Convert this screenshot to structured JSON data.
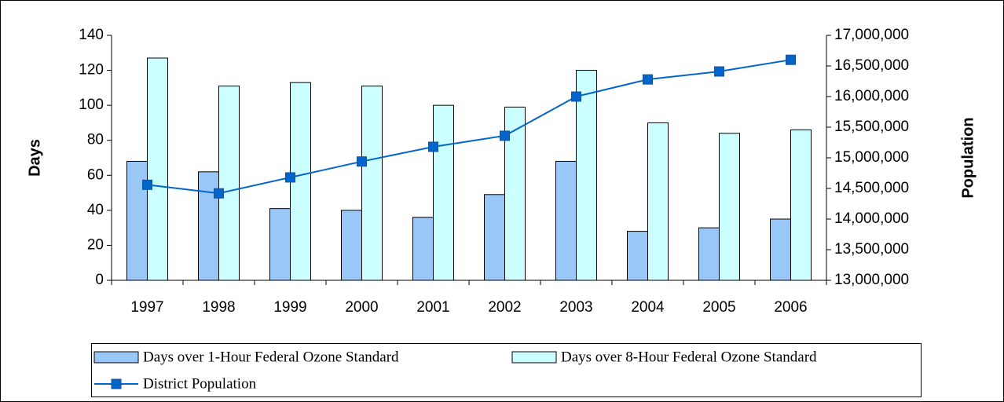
{
  "chart_data": {
    "type": "bar",
    "categories": [
      "1997",
      "1998",
      "1999",
      "2000",
      "2001",
      "2002",
      "2003",
      "2004",
      "2005",
      "2006"
    ],
    "series": [
      {
        "name": "Days over 1-Hour Federal Ozone Standard",
        "color": "#99c8f8",
        "type": "bar",
        "values": [
          68,
          62,
          41,
          40,
          36,
          49,
          68,
          28,
          30,
          35
        ]
      },
      {
        "name": "Days over 8-Hour Federal Ozone Standard",
        "color": "#ccffff",
        "type": "bar",
        "values": [
          127,
          111,
          113,
          111,
          100,
          99,
          120,
          90,
          84,
          86
        ]
      },
      {
        "name": "District Population",
        "color": "#0066cc",
        "type": "line",
        "axis": "y2",
        "values": [
          14560000,
          14420000,
          14680000,
          14940000,
          15180000,
          15360000,
          16000000,
          16280000,
          16410000,
          16600000
        ]
      }
    ],
    "ylabel": "Days",
    "y2label": "Population",
    "ylim": [
      0,
      140
    ],
    "yticks": [
      0,
      20,
      40,
      60,
      80,
      100,
      120,
      140
    ],
    "y2lim": [
      13000000,
      17000000
    ],
    "y2ticks": [
      {
        "value": 13000000,
        "label": "13,000,000"
      },
      {
        "value": 13500000,
        "label": "13,500,000"
      },
      {
        "value": 14000000,
        "label": "14,000,000"
      },
      {
        "value": 14500000,
        "label": "14,500,000"
      },
      {
        "value": 15000000,
        "label": "15,000,000"
      },
      {
        "value": 15500000,
        "label": "15,500,000"
      },
      {
        "value": 16000000,
        "label": "16,000,000"
      },
      {
        "value": 16500000,
        "label": "16,500,000"
      },
      {
        "value": 17000000,
        "label": "17,000,000"
      }
    ],
    "legend": "bottom",
    "grid": false
  }
}
